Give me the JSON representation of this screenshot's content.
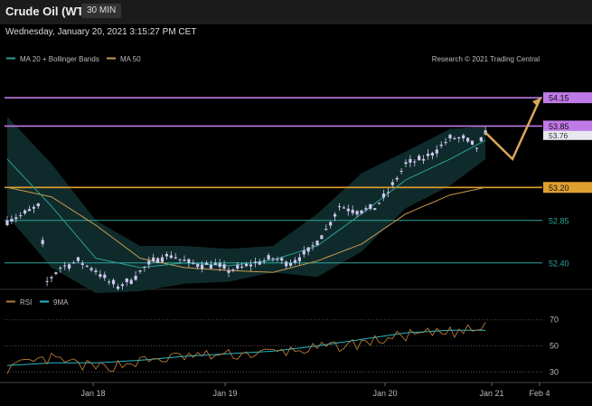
{
  "header": {
    "title": "Crude Oil (WTI)",
    "timeframe": "30 MIN"
  },
  "timestamp": "Wednesday, January 20, 2021 3:15:27 PM CET",
  "credit": "Research © 2021 Trading Central",
  "colors": {
    "candle": "#cfc8ef",
    "ma20": "#2e9e96",
    "ma50": "#c89a52",
    "band": "#0f2a2a",
    "level_purple": "#c07ae8",
    "level_orange": "#e0a030",
    "level_teal": "#2ca59c",
    "rsi": "#b57a3a",
    "rsi_ma": "#26b7c9"
  },
  "chart_data": [
    {
      "type": "candlestick",
      "legend": [
        {
          "label": "MA 20 + Bollinger Bands",
          "color": "#2e9e96"
        },
        {
          "label": "MA 50",
          "color": "#c89a52"
        }
      ],
      "y_range": [
        52.12,
        54.4
      ],
      "x_ticks": [
        "Jan 18",
        "Jan 19",
        "Jan 20",
        "Jan 21",
        "Feb 4"
      ],
      "levels": [
        {
          "value": 54.15,
          "label": "54.15",
          "color": "#c07ae8",
          "boxed": true
        },
        {
          "value": 53.85,
          "label": "53.85",
          "color": "#c07ae8",
          "boxed": true
        },
        {
          "value": 53.2,
          "label": "53.20",
          "color": "#e0a030",
          "boxed": true
        },
        {
          "value": 52.85,
          "label": "52.85",
          "color": "#2ca59c",
          "boxed": false
        },
        {
          "value": 52.4,
          "label": "52.40",
          "color": "#2ca59c",
          "boxed": false
        }
      ],
      "last_price": {
        "value": 53.76,
        "label": "53.76"
      },
      "forecast_path": [
        53.78,
        53.5,
        54.15
      ],
      "close_anchors": [
        [
          0,
          52.85
        ],
        [
          3,
          52.9
        ],
        [
          7,
          53.0
        ],
        [
          9,
          52.2
        ],
        [
          12,
          52.35
        ],
        [
          16,
          52.42
        ],
        [
          20,
          52.32
        ],
        [
          23,
          52.2
        ],
        [
          25,
          52.15
        ],
        [
          28,
          52.22
        ],
        [
          31,
          52.35
        ],
        [
          34,
          52.45
        ],
        [
          37,
          52.48
        ],
        [
          41,
          52.4
        ],
        [
          44,
          52.38
        ],
        [
          47,
          52.38
        ],
        [
          50,
          52.32
        ],
        [
          53,
          52.35
        ],
        [
          56,
          52.4
        ],
        [
          60,
          52.45
        ],
        [
          64,
          52.4
        ],
        [
          68,
          52.52
        ],
        [
          72,
          52.75
        ],
        [
          75,
          53.0
        ],
        [
          79,
          52.95
        ],
        [
          83,
          52.98
        ],
        [
          86,
          53.15
        ],
        [
          90,
          53.45
        ],
        [
          94,
          53.5
        ],
        [
          97,
          53.6
        ],
        [
          100,
          53.72
        ],
        [
          103,
          53.72
        ],
        [
          106,
          53.62
        ],
        [
          108,
          53.76
        ]
      ],
      "ma20_anchors": [
        [
          0,
          53.5
        ],
        [
          10,
          53.0
        ],
        [
          20,
          52.45
        ],
        [
          30,
          52.35
        ],
        [
          40,
          52.4
        ],
        [
          50,
          52.37
        ],
        [
          60,
          52.43
        ],
        [
          70,
          52.58
        ],
        [
          80,
          52.92
        ],
        [
          90,
          53.28
        ],
        [
          100,
          53.5
        ],
        [
          108,
          53.7
        ]
      ],
      "upper_band_anchors": [
        [
          0,
          53.95
        ],
        [
          10,
          53.45
        ],
        [
          20,
          52.85
        ],
        [
          30,
          52.58
        ],
        [
          40,
          52.58
        ],
        [
          50,
          52.55
        ],
        [
          60,
          52.58
        ],
        [
          70,
          52.92
        ],
        [
          80,
          53.35
        ],
        [
          90,
          53.58
        ],
        [
          100,
          53.82
        ],
        [
          108,
          53.85
        ]
      ],
      "lower_band_anchors": [
        [
          0,
          52.9
        ],
        [
          10,
          52.35
        ],
        [
          20,
          52.08
        ],
        [
          30,
          52.1
        ],
        [
          40,
          52.18
        ],
        [
          50,
          52.2
        ],
        [
          60,
          52.3
        ],
        [
          70,
          52.25
        ],
        [
          80,
          52.52
        ],
        [
          90,
          52.98
        ],
        [
          100,
          53.22
        ],
        [
          108,
          53.5
        ]
      ],
      "ma50_anchors": [
        [
          0,
          53.2
        ],
        [
          10,
          53.1
        ],
        [
          20,
          52.8
        ],
        [
          30,
          52.45
        ],
        [
          40,
          52.35
        ],
        [
          50,
          52.32
        ],
        [
          60,
          52.3
        ],
        [
          70,
          52.42
        ],
        [
          80,
          52.6
        ],
        [
          90,
          52.92
        ],
        [
          100,
          53.12
        ],
        [
          108,
          53.2
        ]
      ]
    },
    {
      "type": "line",
      "legend": [
        {
          "label": "RSI",
          "color": "#b57a3a"
        },
        {
          "label": "9MA",
          "color": "#26b7c9"
        }
      ],
      "y_range": [
        22,
        76
      ],
      "y_ticks": [
        70,
        50,
        30
      ],
      "rsi_anchors": [
        [
          0,
          33
        ],
        [
          10,
          40
        ],
        [
          20,
          33
        ],
        [
          30,
          38
        ],
        [
          40,
          42
        ],
        [
          50,
          43
        ],
        [
          60,
          45
        ],
        [
          70,
          48
        ],
        [
          80,
          52
        ],
        [
          90,
          58
        ],
        [
          100,
          60
        ],
        [
          105,
          62
        ],
        [
          108,
          64
        ]
      ],
      "rsi_ma_anchors": [
        [
          0,
          35
        ],
        [
          10,
          37
        ],
        [
          20,
          37
        ],
        [
          30,
          39
        ],
        [
          40,
          42
        ],
        [
          50,
          44
        ],
        [
          60,
          46
        ],
        [
          70,
          50
        ],
        [
          80,
          55
        ],
        [
          90,
          60
        ],
        [
          100,
          62
        ],
        [
          108,
          62
        ]
      ]
    }
  ]
}
